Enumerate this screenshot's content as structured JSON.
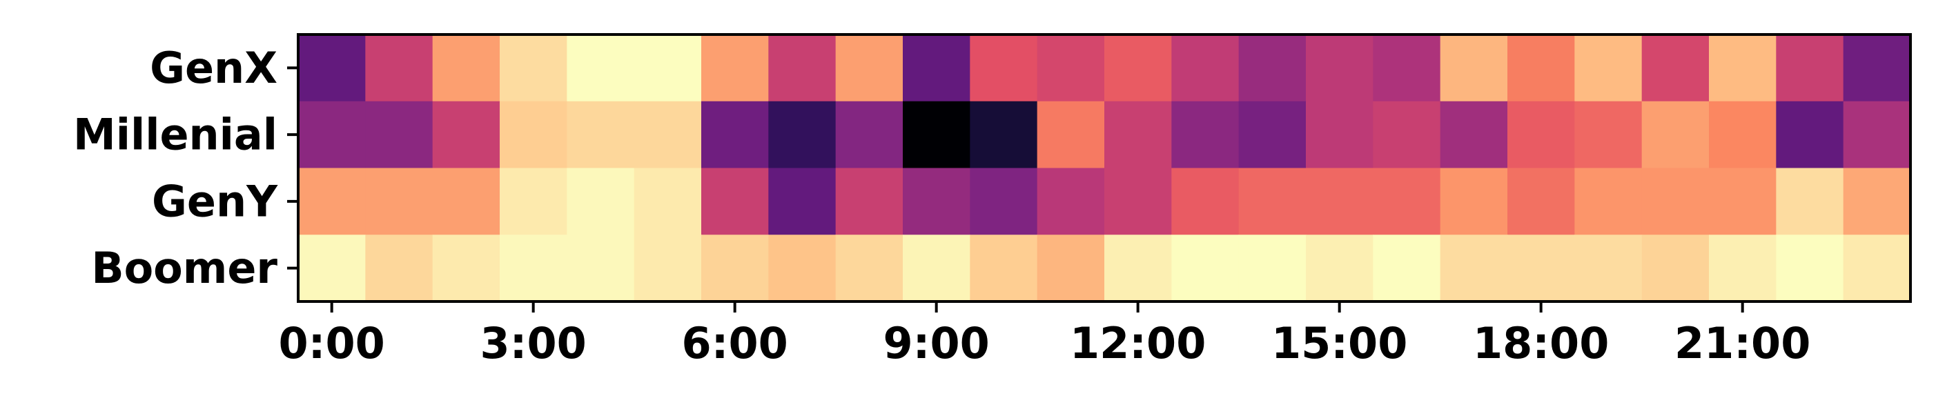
{
  "chart_data": {
    "type": "heatmap",
    "title": "",
    "xlabel": "",
    "ylabel": "",
    "colormap": "magma",
    "value_range": [
      0,
      1
    ],
    "rows": [
      "GenX",
      "Millenial",
      "GenY",
      "Boomer"
    ],
    "columns": [
      "0:00",
      "1:00",
      "2:00",
      "3:00",
      "4:00",
      "5:00",
      "6:00",
      "7:00",
      "8:00",
      "9:00",
      "10:00",
      "11:00",
      "12:00",
      "13:00",
      "14:00",
      "15:00",
      "16:00",
      "17:00",
      "18:00",
      "19:00",
      "20:00",
      "21:00",
      "22:00",
      "23:00"
    ],
    "x_tick_labels": [
      "0:00",
      "3:00",
      "6:00",
      "9:00",
      "12:00",
      "15:00",
      "18:00",
      "21:00"
    ],
    "x_tick_columns": [
      0,
      3,
      6,
      9,
      12,
      15,
      18,
      21
    ],
    "values": [
      [
        0.3,
        0.55,
        0.8,
        0.93,
        1.0,
        1.0,
        0.8,
        0.55,
        0.8,
        0.3,
        0.62,
        0.58,
        0.65,
        0.53,
        0.43,
        0.52,
        0.48,
        0.85,
        0.73,
        0.86,
        0.58,
        0.86,
        0.55,
        0.33
      ],
      [
        0.4,
        0.4,
        0.55,
        0.9,
        0.92,
        0.92,
        0.33,
        0.18,
        0.38,
        0.0,
        0.1,
        0.72,
        0.55,
        0.4,
        0.35,
        0.52,
        0.55,
        0.45,
        0.65,
        0.68,
        0.8,
        0.75,
        0.3,
        0.47
      ],
      [
        0.8,
        0.8,
        0.8,
        0.96,
        0.99,
        0.96,
        0.55,
        0.3,
        0.55,
        0.42,
        0.37,
        0.51,
        0.55,
        0.65,
        0.68,
        0.68,
        0.68,
        0.78,
        0.7,
        0.78,
        0.78,
        0.78,
        0.93,
        0.82
      ],
      [
        0.99,
        0.92,
        0.96,
        0.99,
        0.99,
        0.96,
        0.91,
        0.88,
        0.92,
        0.98,
        0.9,
        0.85,
        0.97,
        1.0,
        1.0,
        0.97,
        1.0,
        0.93,
        0.93,
        0.93,
        0.91,
        0.97,
        1.0,
        0.96
      ]
    ]
  }
}
